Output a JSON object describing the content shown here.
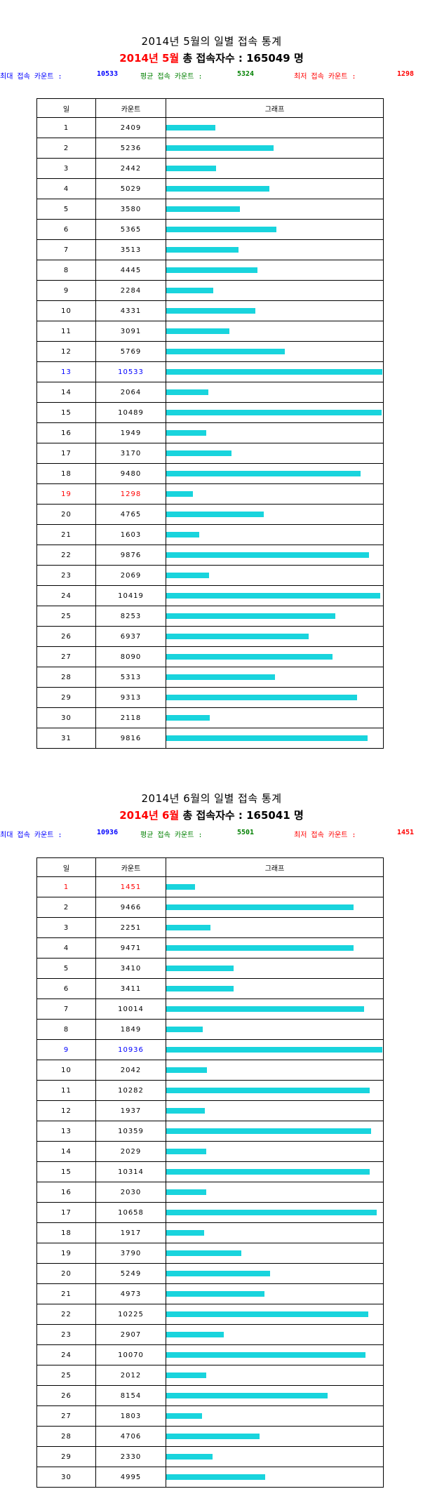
{
  "may": {
    "title": "2014년 5월의 일별 접속 통계",
    "total_prefix": "2014년 5월",
    "total_label": " 총 접속자수 : 165049 명",
    "max_label": "최대 접속 카운트 :",
    "max_value": "10533",
    "avg_label": "평균 접속 카운트 :",
    "avg_value": "5324",
    "min_label": "최저 접속 카운트 :",
    "min_value": "1298",
    "headers": [
      "일",
      "카운트",
      "그래프"
    ],
    "max_count": 10533,
    "rows": [
      {
        "day": "1",
        "count": 2409
      },
      {
        "day": "2",
        "count": 5236
      },
      {
        "day": "3",
        "count": 2442
      },
      {
        "day": "4",
        "count": 5029
      },
      {
        "day": "5",
        "count": 3580
      },
      {
        "day": "6",
        "count": 5365
      },
      {
        "day": "7",
        "count": 3513
      },
      {
        "day": "8",
        "count": 4445
      },
      {
        "day": "9",
        "count": 2284
      },
      {
        "day": "10",
        "count": 4331
      },
      {
        "day": "11",
        "count": 3091
      },
      {
        "day": "12",
        "count": 5769
      },
      {
        "day": "13",
        "count": 10533,
        "highlight": "max"
      },
      {
        "day": "14",
        "count": 2064
      },
      {
        "day": "15",
        "count": 10489
      },
      {
        "day": "16",
        "count": 1949
      },
      {
        "day": "17",
        "count": 3170
      },
      {
        "day": "18",
        "count": 9480
      },
      {
        "day": "19",
        "count": 1298,
        "highlight": "min"
      },
      {
        "day": "20",
        "count": 4765
      },
      {
        "day": "21",
        "count": 1603
      },
      {
        "day": "22",
        "count": 9876
      },
      {
        "day": "23",
        "count": 2069
      },
      {
        "day": "24",
        "count": 10419
      },
      {
        "day": "25",
        "count": 8253
      },
      {
        "day": "26",
        "count": 6937
      },
      {
        "day": "27",
        "count": 8090
      },
      {
        "day": "28",
        "count": 5313
      },
      {
        "day": "29",
        "count": 9313
      },
      {
        "day": "30",
        "count": 2118
      },
      {
        "day": "31",
        "count": 9816
      }
    ]
  },
  "june": {
    "title": "2014년 6월의 일별 접속 통계",
    "total_prefix": "2014년 6월",
    "total_label": " 총 접속자수 : 165041 명",
    "max_label": "최대 접속 카운트 :",
    "max_value": "10936",
    "avg_label": "평균 접속 카운트 :",
    "avg_value": "5501",
    "min_label": "최저 접속 카운트 :",
    "min_value": "1451",
    "headers": [
      "일",
      "카운트",
      "그래프"
    ],
    "max_count": 10936,
    "rows": [
      {
        "day": "1",
        "count": 1451,
        "highlight": "min"
      },
      {
        "day": "2",
        "count": 9466
      },
      {
        "day": "3",
        "count": 2251
      },
      {
        "day": "4",
        "count": 9471
      },
      {
        "day": "5",
        "count": 3410
      },
      {
        "day": "6",
        "count": 3411
      },
      {
        "day": "7",
        "count": 10014
      },
      {
        "day": "8",
        "count": 1849
      },
      {
        "day": "9",
        "count": 10936,
        "highlight": "max"
      },
      {
        "day": "10",
        "count": 2042
      },
      {
        "day": "11",
        "count": 10282
      },
      {
        "day": "12",
        "count": 1937
      },
      {
        "day": "13",
        "count": 10359
      },
      {
        "day": "14",
        "count": 2029
      },
      {
        "day": "15",
        "count": 10314
      },
      {
        "day": "16",
        "count": 2030
      },
      {
        "day": "17",
        "count": 10658
      },
      {
        "day": "18",
        "count": 1917
      },
      {
        "day": "19",
        "count": 3790
      },
      {
        "day": "20",
        "count": 5249
      },
      {
        "day": "21",
        "count": 4973
      },
      {
        "day": "22",
        "count": 10225
      },
      {
        "day": "23",
        "count": 2907
      },
      {
        "day": "24",
        "count": 10070
      },
      {
        "day": "25",
        "count": 2012
      },
      {
        "day": "26",
        "count": 8154
      },
      {
        "day": "27",
        "count": 1803
      },
      {
        "day": "28",
        "count": 4706
      },
      {
        "day": "29",
        "count": 2330
      },
      {
        "day": "30",
        "count": 4995
      }
    ]
  },
  "colors": {
    "bar": "#19d4dd",
    "max": "#0000ff",
    "avg": "#008000",
    "min": "#ff0000",
    "total_prefix": "#ff0000"
  }
}
